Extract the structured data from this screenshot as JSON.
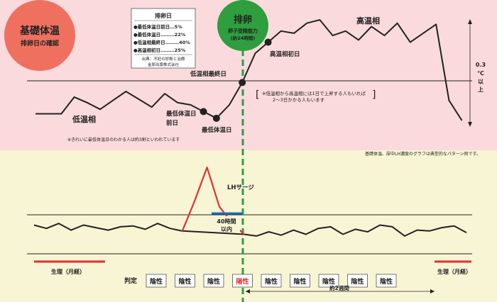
{
  "title_badge": {
    "main": "基礎体温",
    "sub": "排卵日の確認",
    "color": "#f07060"
  },
  "ovulation": {
    "main": "排卵",
    "sub1": "卵子受精能力",
    "sub2": "(約24時間)",
    "color": "#2e9e3e"
  },
  "infobox": {
    "title": "排卵日",
    "rows": [
      {
        "label": "●最低体温日前日…5%",
        "value": 5
      },
      {
        "label": "●最低体温日………22%",
        "value": 22
      },
      {
        "label": "●低温相最終日………40%",
        "value": 40
      },
      {
        "label": "●高温相初日………25%",
        "value": 25
      }
    ],
    "source1": "出典：不妊の診断と治療",
    "source2": "金原出版株式会社"
  },
  "phases": {
    "low": "低温相",
    "high": "高温相",
    "low_color": "#1a6fc0",
    "high_color": "#e03030"
  },
  "annotations": {
    "low_last_day": "低温相最終日",
    "high_first_day": "高温相初日",
    "min_temp_prev1": "最低体温日",
    "min_temp_prev2": "前日",
    "min_temp_day": "最低体温日",
    "rise_note1": "※低温相から高温相には1日で上昇する人もいれば",
    "rise_note2": "2～3日かかる人もいます",
    "min_note": "※きれいに最低体温日のわかる人は約3割といわれています",
    "typical_note": "基礎体温、尿中LH濃度のグラフは典型的なパターン例です。",
    "rise_amount_1": "0.3",
    "rise_amount_2": "℃",
    "rise_amount_3": "以上",
    "lh_surge": "LHサージ",
    "hours_40_1": "40時間",
    "hours_40_2": "以内",
    "two_weeks": "約2週間",
    "period_left": "生理（月経）",
    "period_right": "生理（月経）",
    "judgement": "判定"
  },
  "colors": {
    "top_bg": "#fadadd",
    "bottom_bg": "#f8f5d5",
    "line": "#222222",
    "lh_line": "#e03030",
    "accent_blue": "#1a6fc0"
  },
  "chart_data": [
    {
      "type": "line",
      "title": "基礎体温",
      "series": [
        {
          "name": "基礎体温",
          "values": [
            4.0,
            4.0,
            4.0,
            5.5,
            5.0,
            4.4,
            5.2,
            6.0,
            5.3,
            4.6,
            5.8,
            5.0,
            4.8,
            4.2,
            3.6,
            4.8,
            6.8,
            9.4,
            10.4,
            11.4,
            11.2,
            12.1,
            12.4,
            11.0,
            11.4,
            10.6,
            11.8,
            11.0,
            12.1,
            10.4,
            11.2,
            12.0,
            5.2,
            3.4
          ]
        }
      ],
      "markers": [
        13,
        14,
        16,
        18
      ]
    },
    {
      "type": "line",
      "title": "尿中LH濃度",
      "series": [
        {
          "name": "LH",
          "values": [
            3.6,
            3.2,
            3.8,
            3.0,
            3.6,
            3.3,
            3.0,
            3.4,
            3.5,
            3.1,
            3.8,
            3.2,
            2.9,
            6.5,
            10.5,
            5.8,
            3.9,
            2.5,
            2.3,
            2.8,
            2.4,
            3.0,
            2.5,
            3.2,
            3.4,
            2.5,
            3.1,
            2.8,
            3.6,
            3.4,
            2.3,
            3.0,
            2.9,
            3.3,
            3.5,
            2.7
          ]
        }
      ],
      "lh_range": [
        12,
        17
      ]
    }
  ],
  "judgements": [
    {
      "label": "陰性",
      "positive": false
    },
    {
      "label": "陰性",
      "positive": false
    },
    {
      "label": "陰性",
      "positive": false
    },
    {
      "label": "陽性",
      "positive": true
    },
    {
      "label": "陰性",
      "positive": false
    },
    {
      "label": "陰性",
      "positive": false
    },
    {
      "label": "陰性",
      "positive": false
    },
    {
      "label": "陰性",
      "positive": false
    },
    {
      "label": "陰性",
      "positive": false
    }
  ]
}
